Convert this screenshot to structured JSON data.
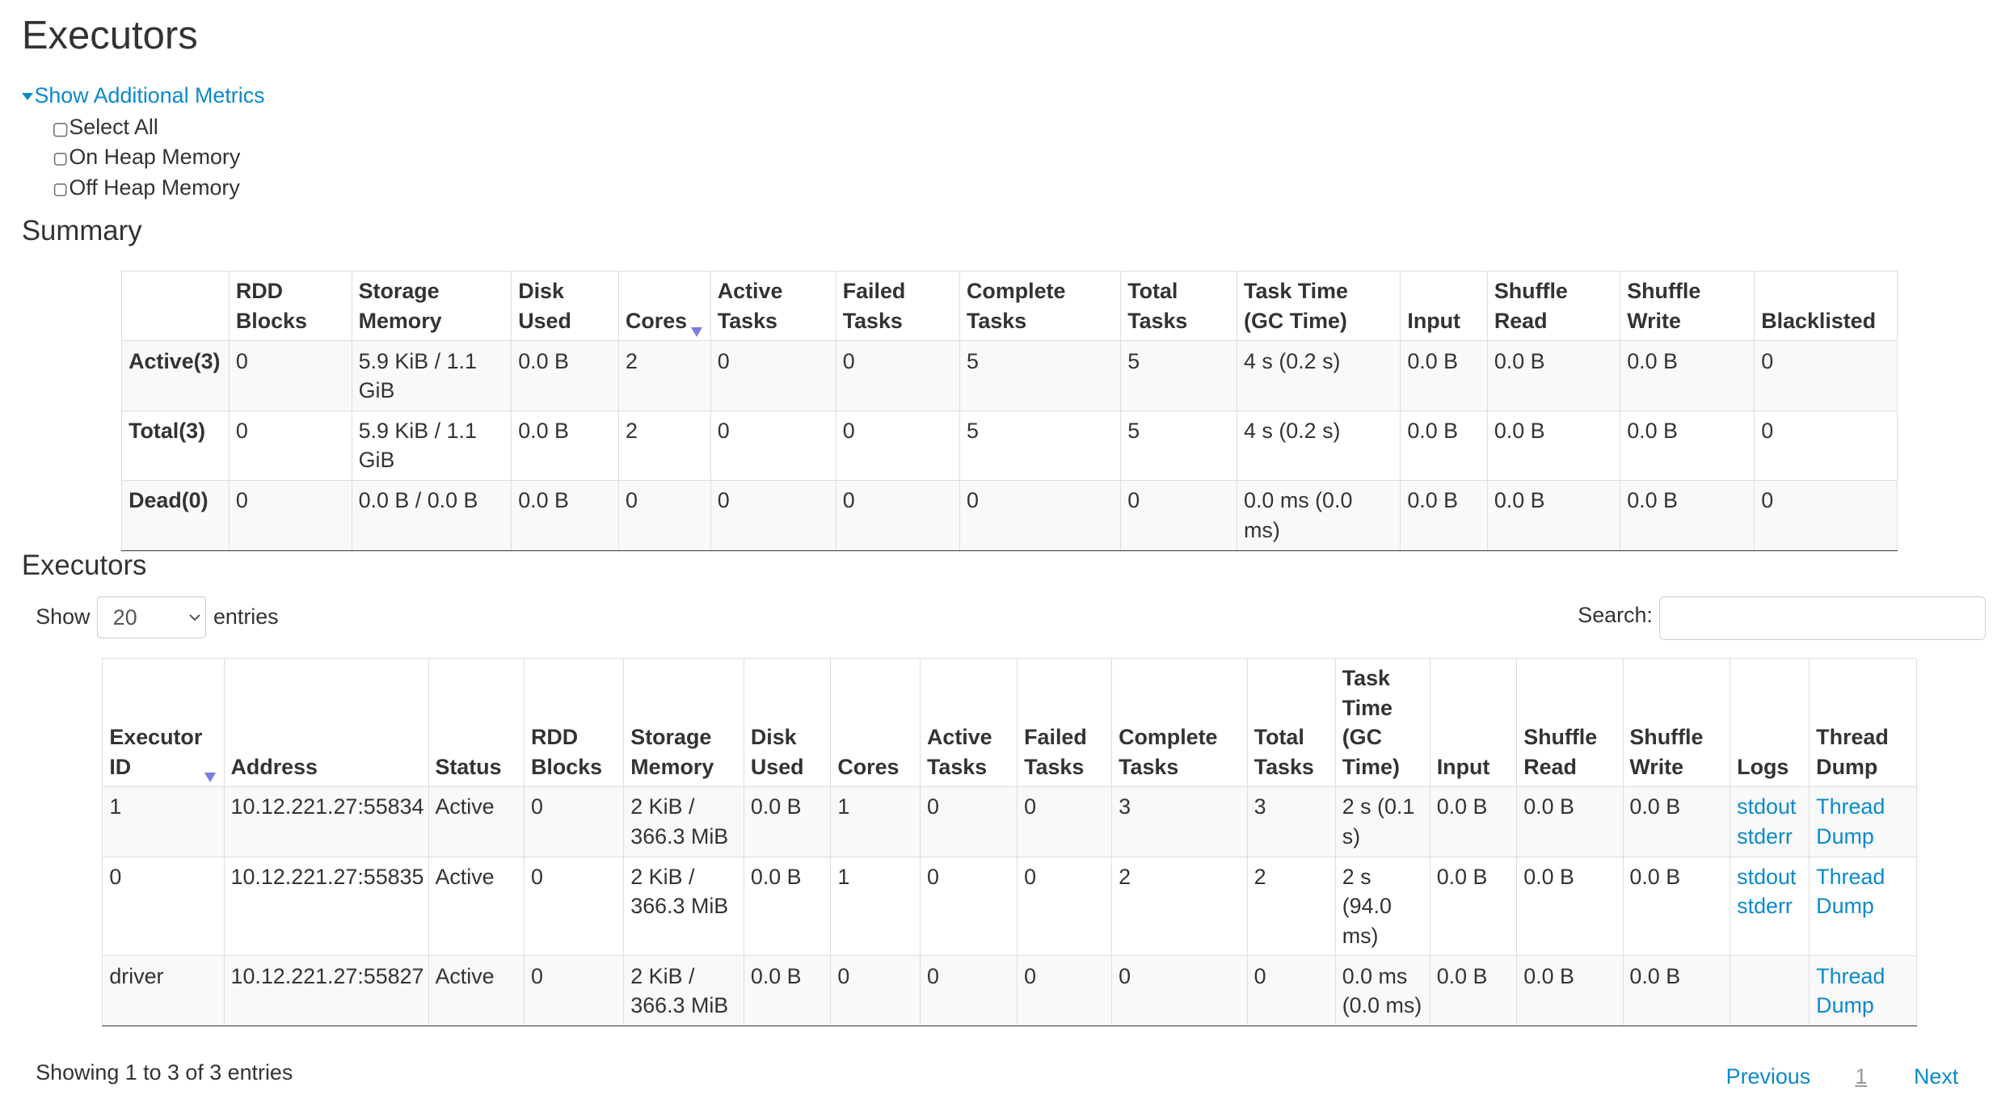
{
  "title": "Executors",
  "metrics": {
    "toggle_label": "Show Additional Metrics",
    "options": [
      "Select All",
      "On Heap Memory",
      "Off Heap Memory"
    ]
  },
  "summary": {
    "heading": "Summary",
    "columns": [
      "",
      "RDD Blocks",
      "Storage Memory",
      "Disk Used",
      "Cores",
      "Active Tasks",
      "Failed Tasks",
      "Complete Tasks",
      "Total Tasks",
      "Task Time (GC Time)",
      "Input",
      "Shuffle Read",
      "Shuffle Write",
      "Blacklisted"
    ],
    "sorted_column": "Cores",
    "rows": [
      [
        "Active(3)",
        "0",
        "5.9 KiB / 1.1 GiB",
        "0.0 B",
        "2",
        "0",
        "0",
        "5",
        "5",
        "4 s (0.2 s)",
        "0.0 B",
        "0.0 B",
        "0.0 B",
        "0"
      ],
      [
        "Total(3)",
        "0",
        "5.9 KiB / 1.1 GiB",
        "0.0 B",
        "2",
        "0",
        "0",
        "5",
        "5",
        "4 s (0.2 s)",
        "0.0 B",
        "0.0 B",
        "0.0 B",
        "0"
      ],
      [
        "Dead(0)",
        "0",
        "0.0 B / 0.0 B",
        "0.0 B",
        "0",
        "0",
        "0",
        "0",
        "0",
        "0.0 ms (0.0 ms)",
        "0.0 B",
        "0.0 B",
        "0.0 B",
        "0"
      ]
    ]
  },
  "executors": {
    "heading": "Executors",
    "show_label": "Show",
    "entries_value": "20",
    "entries_label": "entries",
    "search_label": "Search:",
    "search_value": "",
    "columns": [
      "Executor ID",
      "Address",
      "Status",
      "RDD Blocks",
      "Storage Memory",
      "Disk Used",
      "Cores",
      "Active Tasks",
      "Failed Tasks",
      "Complete Tasks",
      "Total Tasks",
      "Task Time (GC Time)",
      "Input",
      "Shuffle Read",
      "Shuffle Write",
      "Logs",
      "Thread Dump"
    ],
    "sorted_column": "Executor ID",
    "rows": [
      {
        "cells": [
          "1",
          "10.12.221.27:55834",
          "Active",
          "0",
          "2 KiB / 366.3 MiB",
          "0.0 B",
          "1",
          "0",
          "0",
          "3",
          "3",
          "2 s (0.1 s)",
          "0.0 B",
          "0.0 B",
          "0.0 B"
        ],
        "logs": [
          "stdout",
          "stderr"
        ],
        "thread_dump": "Thread Dump"
      },
      {
        "cells": [
          "0",
          "10.12.221.27:55835",
          "Active",
          "0",
          "2 KiB / 366.3 MiB",
          "0.0 B",
          "1",
          "0",
          "0",
          "2",
          "2",
          "2 s (94.0 ms)",
          "0.0 B",
          "0.0 B",
          "0.0 B"
        ],
        "logs": [
          "stdout",
          "stderr"
        ],
        "thread_dump": "Thread Dump"
      },
      {
        "cells": [
          "driver",
          "10.12.221.27:55827",
          "Active",
          "0",
          "2 KiB / 366.3 MiB",
          "0.0 B",
          "0",
          "0",
          "0",
          "0",
          "0",
          "0.0 ms (0.0 ms)",
          "0.0 B",
          "0.0 B",
          "0.0 B"
        ],
        "logs": [],
        "thread_dump": "Thread Dump"
      }
    ],
    "info": "Showing 1 to 3 of 3 entries",
    "pagination": {
      "previous": "Previous",
      "current": "1",
      "next": "Next"
    }
  },
  "colors": {
    "link": "#0a8acb",
    "sort_arrow": "#7b7bdf",
    "stripe": "#f9f9f9"
  }
}
